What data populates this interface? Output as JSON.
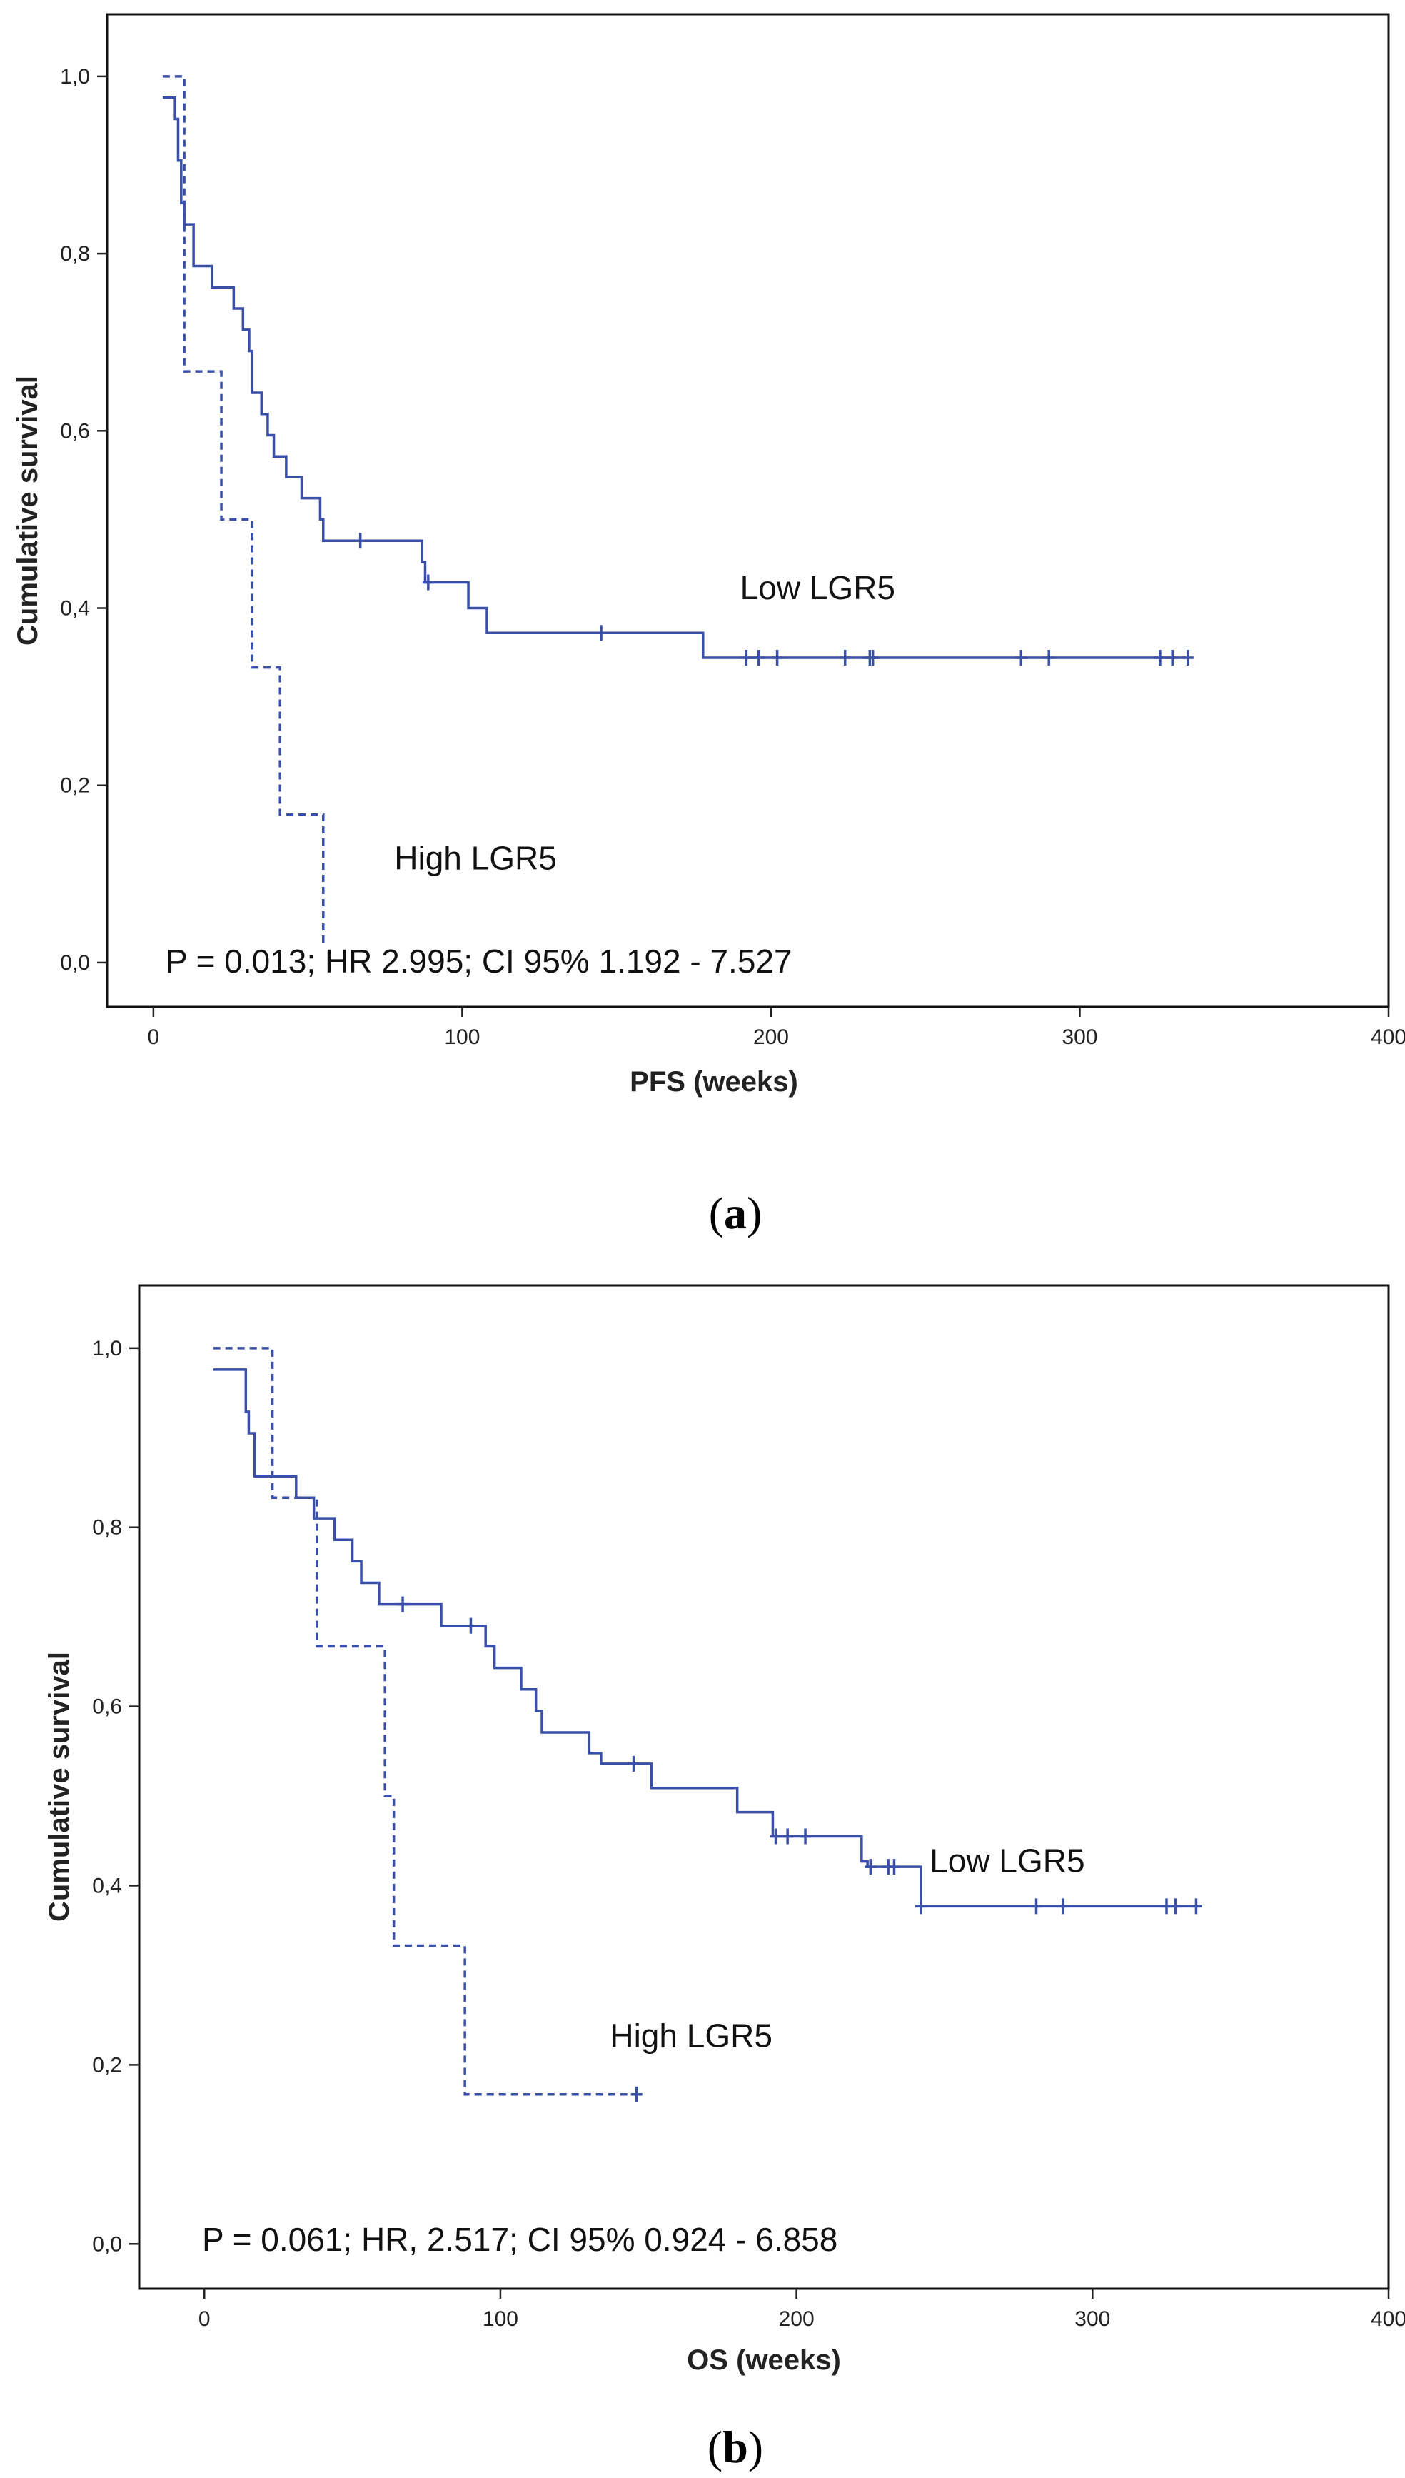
{
  "colors": {
    "series": "#3a4fa8",
    "axis": "#222222",
    "frame": "#111111",
    "background": "#ffffff"
  },
  "chart_data": [
    {
      "type": "line",
      "subtype": "kaplan-meier",
      "caption": "a",
      "xlabel": "PFS (weeks)",
      "ylabel": "Cumulative survival",
      "xlim": [
        -15,
        400
      ],
      "ylim": [
        -0.05,
        1.07
      ],
      "xticks": [
        0,
        100,
        200,
        300,
        400
      ],
      "xtick_labels": [
        "0",
        "100",
        "200",
        "300",
        "400"
      ],
      "yticks": [
        0.0,
        0.2,
        0.4,
        0.6,
        0.8,
        1.0
      ],
      "ytick_labels": [
        "0,0",
        "0,2",
        "0,4",
        "0,6",
        "0,8",
        "1,0"
      ],
      "grid": false,
      "annotation": "P = 0.013; HR 2.995; CI 95% 1.192 - 7.527",
      "series": [
        {
          "name": "Low LGR5",
          "style": "solid",
          "steps": [
            [
              3,
              0.976
            ],
            [
              7,
              0.952
            ],
            [
              8,
              0.905
            ],
            [
              9,
              0.857
            ],
            [
              10,
              0.833
            ],
            [
              13,
              0.786
            ],
            [
              19,
              0.762
            ],
            [
              26,
              0.738
            ],
            [
              29,
              0.714
            ],
            [
              31,
              0.69
            ],
            [
              32,
              0.643
            ],
            [
              35,
              0.619
            ],
            [
              37,
              0.595
            ],
            [
              39,
              0.571
            ],
            [
              43,
              0.548
            ],
            [
              48,
              0.524
            ],
            [
              54,
              0.5
            ],
            [
              55,
              0.476
            ],
            [
              87,
              0.452
            ],
            [
              88,
              0.429
            ],
            [
              102,
              0.4
            ],
            [
              108,
              0.372
            ],
            [
              178,
              0.344
            ],
            [
              335,
              0.344
            ]
          ],
          "censored": [
            [
              67,
              0.476
            ],
            [
              89,
              0.429
            ],
            [
              145,
              0.372
            ],
            [
              192,
              0.344
            ],
            [
              196,
              0.344
            ],
            [
              202,
              0.344
            ],
            [
              224,
              0.344
            ],
            [
              232,
              0.344
            ],
            [
              233,
              0.344
            ],
            [
              281,
              0.344
            ],
            [
              290,
              0.344
            ],
            [
              326,
              0.344
            ],
            [
              330,
              0.344
            ],
            [
              335,
              0.344
            ]
          ],
          "label": "Low LGR5",
          "label_at": [
            190,
            0.41
          ]
        },
        {
          "name": "High LGR5",
          "style": "dashed",
          "steps": [
            [
              3,
              1.0
            ],
            [
              10,
              0.667
            ],
            [
              22,
              0.5
            ],
            [
              32,
              0.333
            ],
            [
              41,
              0.167
            ],
            [
              55,
              0.02
            ]
          ],
          "censored": [],
          "label": "High LGR5",
          "label_at": [
            78,
            0.105
          ]
        }
      ]
    },
    {
      "type": "line",
      "subtype": "kaplan-meier",
      "caption": "b",
      "xlabel": "OS (weeks)",
      "ylabel": "Cumulative survival",
      "xlim": [
        -22,
        400
      ],
      "ylim": [
        -0.05,
        1.07
      ],
      "xticks": [
        0,
        100,
        200,
        300,
        400
      ],
      "xtick_labels": [
        "0",
        "100",
        "200",
        "300",
        "400"
      ],
      "yticks": [
        0.0,
        0.2,
        0.4,
        0.6,
        0.8,
        1.0
      ],
      "ytick_labels": [
        "0,0",
        "0,2",
        "0,4",
        "0,6",
        "0,8",
        "1,0"
      ],
      "grid": false,
      "annotation": "P = 0.061; HR, 2.517; CI 95% 0.924 - 6.858",
      "series": [
        {
          "name": "Low LGR5",
          "style": "solid",
          "steps": [
            [
              3,
              0.976
            ],
            [
              14,
              0.929
            ],
            [
              15,
              0.905
            ],
            [
              17,
              0.857
            ],
            [
              31,
              0.833
            ],
            [
              37,
              0.81
            ],
            [
              44,
              0.786
            ],
            [
              50,
              0.762
            ],
            [
              53,
              0.738
            ],
            [
              59,
              0.714
            ],
            [
              80,
              0.69
            ],
            [
              95,
              0.667
            ],
            [
              98,
              0.643
            ],
            [
              107,
              0.619
            ],
            [
              112,
              0.595
            ],
            [
              114,
              0.571
            ],
            [
              130,
              0.548
            ],
            [
              134,
              0.536
            ],
            [
              151,
              0.509
            ],
            [
              180,
              0.482
            ],
            [
              192,
              0.455
            ],
            [
              222,
              0.427
            ],
            [
              224,
              0.421
            ],
            [
              242,
              0.377
            ],
            [
              335,
              0.377
            ]
          ],
          "censored": [
            [
              67,
              0.714
            ],
            [
              90,
              0.69
            ],
            [
              145,
              0.536
            ],
            [
              193,
              0.455
            ],
            [
              197,
              0.455
            ],
            [
              203,
              0.455
            ],
            [
              225,
              0.421
            ],
            [
              231,
              0.421
            ],
            [
              233,
              0.421
            ],
            [
              242,
              0.377
            ],
            [
              281,
              0.377
            ],
            [
              290,
              0.377
            ],
            [
              325,
              0.377
            ],
            [
              328,
              0.377
            ],
            [
              335,
              0.377
            ]
          ],
          "label": "Low LGR5",
          "label_at": [
            245,
            0.415
          ]
        },
        {
          "name": "High LGR5",
          "style": "dashed",
          "steps": [
            [
              3,
              1.0
            ],
            [
              23,
              0.833
            ],
            [
              38,
              0.667
            ],
            [
              61,
              0.5
            ],
            [
              64,
              0.333
            ],
            [
              88,
              0.167
            ],
            [
              146,
              0.167
            ]
          ],
          "censored": [
            [
              146,
              0.167
            ]
          ],
          "label": "High LGR5",
          "label_at": [
            137,
            0.22
          ]
        }
      ]
    }
  ]
}
